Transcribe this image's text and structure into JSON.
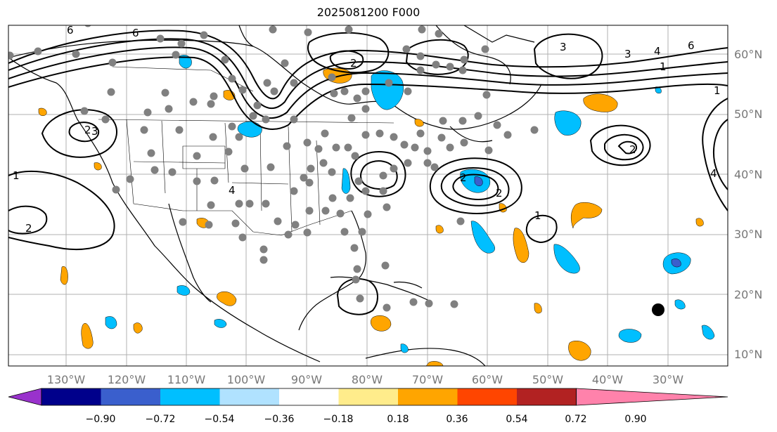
{
  "title": "2025081200 F000",
  "lon_labels": [
    "130°W",
    "120°W",
    "110°W",
    "100°W",
    "90°W",
    "80°W",
    "70°W",
    "60°W",
    "50°W",
    "40°W",
    "30°W"
  ],
  "lat_labels": [
    "60°N",
    "50°N",
    "40°N",
    "30°N",
    "20°N",
    "10°N"
  ],
  "colorbar": {
    "ticks": [
      "−0.90",
      "−0.72",
      "−0.54",
      "−0.36",
      "−0.18",
      "0.18",
      "0.36",
      "0.54",
      "0.72",
      "0.90"
    ],
    "colors": [
      "#9932cc",
      "#00008b",
      "#3a5fcd",
      "#00bfff",
      "#b0e2ff",
      "#ffffff",
      "#ffec8b",
      "#ffa500",
      "#ff4500",
      "#b22222",
      "#ff82ab"
    ]
  },
  "contour_labels": [
    "6",
    "2",
    "1",
    "4",
    "3",
    "2",
    "6",
    "1",
    "2",
    "3",
    "4",
    "2",
    "1",
    "2",
    "2",
    "4",
    "6",
    "3",
    "1"
  ]
}
